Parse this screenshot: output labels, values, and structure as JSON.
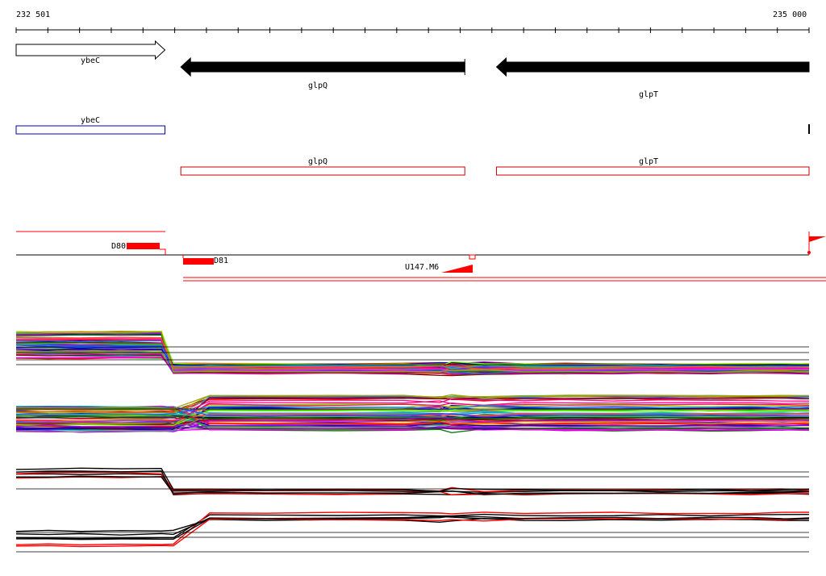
{
  "ruler": {
    "start_label": "232 501",
    "end_label": "235 000",
    "start_bp": 232501,
    "end_bp": 235000
  },
  "genes": [
    {
      "name": "ybeC",
      "strand": "+",
      "start_bp": 232501,
      "end_bp": 232970
    },
    {
      "name": "glpQ",
      "strand": "-",
      "start_bp": 233020,
      "end_bp": 233915
    },
    {
      "name": "glpT",
      "strand": "-",
      "start_bp": 234015,
      "end_bp": 235000
    }
  ],
  "transcript_features": [
    {
      "name": "ybeC",
      "color": "#0000aa",
      "start_bp": 232501,
      "end_bp": 232970
    },
    {
      "name": "glpQ",
      "color": "#cc0000",
      "start_bp": 233020,
      "end_bp": 233915
    },
    {
      "name": "glpT",
      "color": "#cc0000",
      "start_bp": 234015,
      "end_bp": 235000
    }
  ],
  "regulatory_features": [
    {
      "name": "D80",
      "strand": "top"
    },
    {
      "name": "D81",
      "strand": "bottom"
    },
    {
      "name": "U147.M6",
      "strand": "bottom"
    }
  ],
  "colors": {
    "feature_red": "#ff0000",
    "outline_red": "#cc0000",
    "outline_blue": "#0000aa",
    "black": "#000000"
  }
}
